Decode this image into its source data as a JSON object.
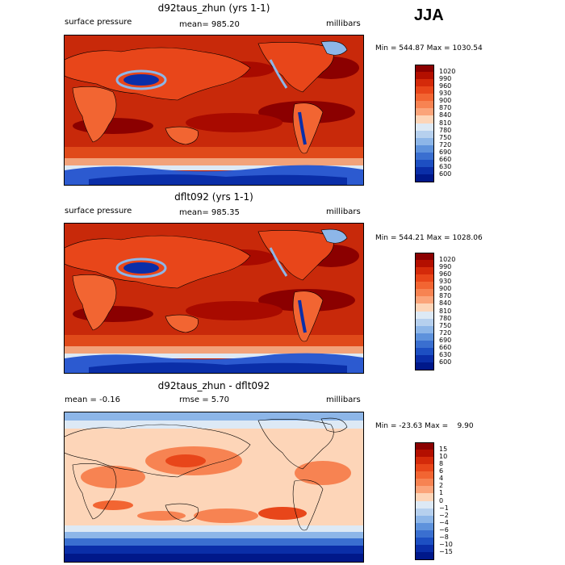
{
  "season": "JJA",
  "chart_data": [
    {
      "type": "heatmap",
      "title": "d92taus_zhun (yrs 1-1)",
      "variable": "surface pressure",
      "stat_text": "mean= 985.20",
      "units": "millibars",
      "minmax_text": "Min = 544.87 Max = 1030.54",
      "min": 544.87,
      "max": 1030.54,
      "mean": 985.2,
      "levels": [
        "1020",
        "990",
        "960",
        "930",
        "900",
        "870",
        "840",
        "810",
        "780",
        "750",
        "720",
        "690",
        "660",
        "630",
        "600"
      ],
      "colors": [
        "#8b0000",
        "#b30f00",
        "#d42a0a",
        "#e8461a",
        "#f26532",
        "#f78352",
        "#fba47a",
        "#fdd5b8",
        "#dde9f5",
        "#b6d0ee",
        "#8db6e8",
        "#5e92dc",
        "#3a6fd0",
        "#1d4fc2",
        "#0a2ea8",
        "#00188a"
      ]
    },
    {
      "type": "heatmap",
      "title": "dflt092 (yrs 1-1)",
      "variable": "surface pressure",
      "stat_text": "mean= 985.35",
      "units": "millibars",
      "minmax_text": "Min = 544.21 Max = 1028.06",
      "min": 544.21,
      "max": 1028.06,
      "mean": 985.35,
      "levels": [
        "1020",
        "990",
        "960",
        "930",
        "900",
        "870",
        "840",
        "810",
        "780",
        "750",
        "720",
        "690",
        "660",
        "630",
        "600"
      ],
      "colors": [
        "#8b0000",
        "#b30f00",
        "#d42a0a",
        "#e8461a",
        "#f26532",
        "#f78352",
        "#fba47a",
        "#fdd5b8",
        "#dde9f5",
        "#b6d0ee",
        "#8db6e8",
        "#5e92dc",
        "#3a6fd0",
        "#1d4fc2",
        "#0a2ea8",
        "#00188a"
      ]
    },
    {
      "type": "heatmap",
      "title": "d92taus_zhun - dflt092",
      "stat_text": "mean =   -0.16",
      "rmse_text": "rmse =    5.70",
      "units": "millibars",
      "minmax_text": "Min = -23.63 Max =    9.90",
      "min": -23.63,
      "max": 9.9,
      "mean": -0.16,
      "rmse": 5.7,
      "levels": [
        "15",
        "10",
        "8",
        "6",
        "4",
        "2",
        "1",
        "0",
        "−1",
        "−2",
        "−4",
        "−6",
        "−8",
        "−10",
        "−15"
      ],
      "colors": [
        "#8b0000",
        "#b30f00",
        "#d42a0a",
        "#e8461a",
        "#f26532",
        "#f78352",
        "#fba47a",
        "#fdd5b8",
        "#dde9f5",
        "#b6d0ee",
        "#8db6e8",
        "#5e92dc",
        "#3a6fd0",
        "#1d4fc2",
        "#0a2ea8",
        "#00188a"
      ]
    }
  ]
}
